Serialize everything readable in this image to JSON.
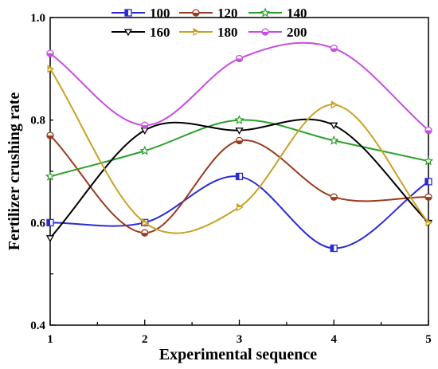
{
  "chart_data": {
    "type": "line",
    "xlabel": "Experimental sequence",
    "ylabel": "Fertilizer crushing rate",
    "x": [
      1,
      2,
      3,
      4,
      5
    ],
    "xlim": [
      1,
      5
    ],
    "ylim": [
      0.4,
      1.0
    ],
    "xticks": [
      "1",
      "2",
      "3",
      "4",
      "5"
    ],
    "yticks": [
      "0.4",
      "0.6",
      "0.8",
      "1.0"
    ],
    "grid": false,
    "legend_position": "top",
    "series": [
      {
        "name": "100",
        "values": [
          0.6,
          0.6,
          0.69,
          0.55,
          0.68
        ],
        "color": "#2b2bd6",
        "marker": "half-square"
      },
      {
        "name": "120",
        "values": [
          0.77,
          0.58,
          0.76,
          0.65,
          0.65
        ],
        "color": "#9b3b1f",
        "marker": "half-circle"
      },
      {
        "name": "140",
        "values": [
          0.69,
          0.74,
          0.8,
          0.76,
          0.72
        ],
        "color": "#2aa02a",
        "marker": "star"
      },
      {
        "name": "160",
        "values": [
          0.57,
          0.78,
          0.78,
          0.79,
          0.6
        ],
        "color": "#000000",
        "marker": "down-triangle"
      },
      {
        "name": "180",
        "values": [
          0.9,
          0.6,
          0.63,
          0.83,
          0.6
        ],
        "color": "#c9a227",
        "marker": "right-triangle"
      },
      {
        "name": "200",
        "values": [
          0.93,
          0.79,
          0.92,
          0.94,
          0.78
        ],
        "color": "#c74ee0",
        "marker": "half-circle"
      }
    ]
  }
}
